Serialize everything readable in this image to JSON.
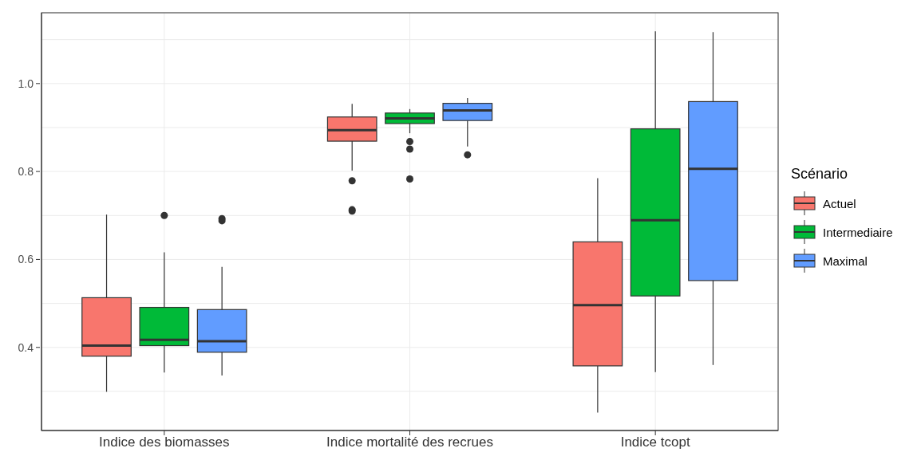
{
  "chart_data": {
    "type": "box",
    "categories": [
      "Indice des biomasses",
      "Indice mortalité des recrues",
      "Indice tcopt"
    ],
    "legend_title": "Scénario",
    "legend": "right",
    "grid": true,
    "ylim": [
      0.211,
      1.161
    ],
    "yticks": [
      {
        "value": 0.3,
        "label": null
      },
      {
        "value": 0.4,
        "label": "0.4"
      },
      {
        "value": 0.5,
        "label": null
      },
      {
        "value": 0.6,
        "label": "0.6"
      },
      {
        "value": 0.7,
        "label": null
      },
      {
        "value": 0.8,
        "label": "0.8"
      },
      {
        "value": 0.9,
        "label": null
      },
      {
        "value": 1,
        "label": "1.0"
      },
      {
        "value": 1.1,
        "label": null
      }
    ],
    "series": [
      {
        "name": "Actuel",
        "color": "#f8766d",
        "boxes": [
          {
            "low": 0.299,
            "q1": 0.38,
            "median": 0.404,
            "q3": 0.513,
            "high": 0.702
          },
          {
            "low": 0.802,
            "q1": 0.869,
            "median": 0.894,
            "q3": 0.924,
            "high": 0.954,
            "outliers": [
              0.779,
              0.713,
              0.71
            ]
          },
          {
            "low": 0.252,
            "q1": 0.358,
            "median": 0.496,
            "q3": 0.64,
            "high": 0.785
          }
        ]
      },
      {
        "name": "Intermediaire",
        "color": "#00ba38",
        "boxes": [
          {
            "low": 0.343,
            "q1": 0.404,
            "median": 0.417,
            "q3": 0.491,
            "high": 0.616,
            "outliers": [
              0.7
            ]
          },
          {
            "low": 0.887,
            "q1": 0.909,
            "median": 0.921,
            "q3": 0.933,
            "high": 0.942,
            "outliers": [
              0.868,
              0.851,
              0.783
            ]
          },
          {
            "low": 0.344,
            "q1": 0.517,
            "median": 0.689,
            "q3": 0.897,
            "high": 1.119
          }
        ]
      },
      {
        "name": "Maximal",
        "color": "#619cff",
        "boxes": [
          {
            "low": 0.336,
            "q1": 0.389,
            "median": 0.414,
            "q3": 0.486,
            "high": 0.583,
            "outliers": [
              0.693,
              0.688
            ]
          },
          {
            "low": 0.857,
            "q1": 0.916,
            "median": 0.939,
            "q3": 0.955,
            "high": 0.967,
            "outliers": [
              0.838
            ]
          },
          {
            "low": 0.36,
            "q1": 0.552,
            "median": 0.806,
            "q3": 0.959,
            "high": 1.117
          }
        ]
      }
    ]
  }
}
